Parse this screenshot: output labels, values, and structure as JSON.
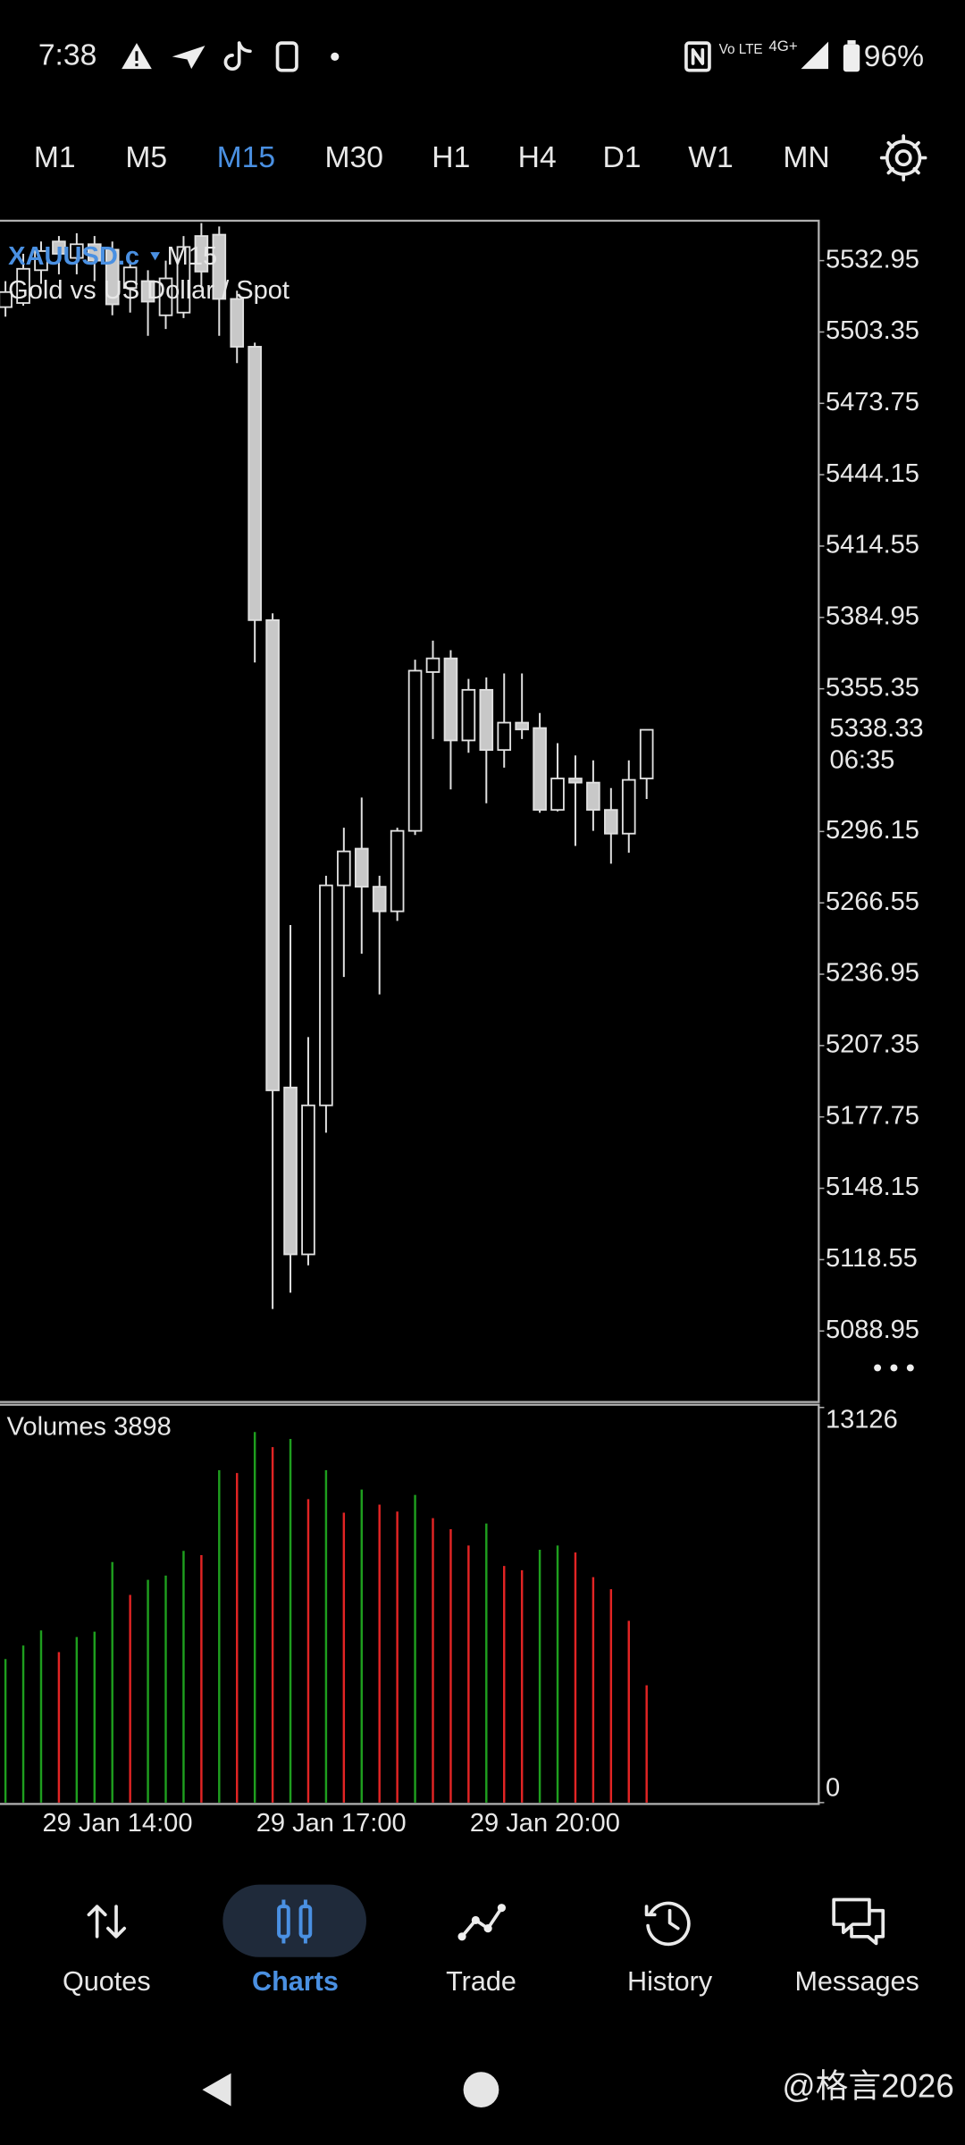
{
  "status_bar": {
    "time": "7:38",
    "volte": "Vo LTE",
    "network": "4G+",
    "battery": "96%"
  },
  "timeframes": {
    "items": [
      "M1",
      "M5",
      "M15",
      "M30",
      "H1",
      "H4",
      "D1",
      "W1",
      "MN"
    ],
    "active_index": 2
  },
  "chart_data": [
    {
      "type": "candlestick",
      "symbol": "XAUUSD.c",
      "timeframe": "M15",
      "subtitle": "Gold vs US Dollar / Spot",
      "categories": [
        null,
        null,
        "29 Jan 14:00",
        null,
        null,
        null,
        null,
        null,
        null,
        null,
        null,
        null,
        null,
        null,
        "29 Jan 17:00",
        null,
        null,
        null,
        null,
        null,
        null,
        null,
        null,
        null,
        null,
        null,
        "29 Jan 20:00",
        null,
        null,
        null,
        null,
        null,
        null,
        null,
        null,
        null,
        null
      ],
      "open": [
        5513.67,
        5515.37,
        5528.98,
        5540.89,
        5534.08,
        5539.75,
        5537.49,
        5521.61,
        5524.45,
        5510.27,
        5511.4,
        5543.16,
        5543.72,
        5517.07,
        5497.23,
        5383.83,
        5189.96,
        5120.74,
        5182.55,
        5273.8,
        5289.03,
        5273.24,
        5263.04,
        5296.41,
        5362.28,
        5367.95,
        5333.93,
        5354.91,
        5329.96,
        5341.3,
        5339.06,
        5305.11,
        5318.14,
        5316.43,
        5305.11,
        5295.27,
        5318.14
      ],
      "high": [
        5524.45,
        5535.79,
        5540.89,
        5543.16,
        5544.29,
        5543.16,
        5540.89,
        5532.95,
        5528.98,
        5532.95,
        5543.16,
        5548.5,
        5547.13,
        5520.48,
        5498.93,
        5386.66,
        5257.34,
        5210.89,
        5277.8,
        5297.71,
        5310.21,
        5277.8,
        5297.71,
        5367.39,
        5375.32,
        5371.35,
        5359.45,
        5360.02,
        5361.72,
        5361.72,
        5345.31,
        5332.79,
        5327.7,
        5325.65,
        5314.16,
        5325.65,
        5338.33
      ],
      "low": [
        5509.7,
        5514.24,
        5523.31,
        5527.28,
        5527.28,
        5524.45,
        5510.27,
        5511.4,
        5501.77,
        5504.6,
        5509.14,
        5521.61,
        5501.77,
        5490.43,
        5366.25,
        5098.08,
        5104.86,
        5116.2,
        5171.2,
        5235.79,
        5245.46,
        5228.59,
        5259.07,
        5294.71,
        5334.5,
        5313.6,
        5328.83,
        5307.88,
        5322.66,
        5334.5,
        5303.92,
        5304.5,
        5290.17,
        5296.41,
        5282.8,
        5287.33,
        5309.62
      ],
      "close": [
        5519.91,
        5529.55,
        5536.92,
        5535.79,
        5539.75,
        5532.95,
        5514.81,
        5530.12,
        5515.94,
        5525.58,
        5538.62,
        5528.41,
        5517.07,
        5497.23,
        5383.83,
        5188.78,
        5120.74,
        5182.55,
        5273.8,
        5287.9,
        5273.24,
        5263.04,
        5296.41,
        5362.85,
        5367.95,
        5333.93,
        5354.91,
        5329.96,
        5341.3,
        5338.47,
        5305.11,
        5318.14,
        5316.43,
        5305.11,
        5295.27,
        5317.56,
        5338.33
      ],
      "ylim": [
        5059.5,
        5549.5
      ],
      "yticks": [
        5532.95,
        5503.35,
        5473.75,
        5444.15,
        5414.55,
        5384.95,
        5355.35,
        5296.15,
        5266.55,
        5236.95,
        5207.35,
        5177.75,
        5148.15,
        5118.55,
        5088.95
      ],
      "current_price": 5338.33,
      "countdown": "06:35",
      "up_fill": "#000000",
      "down_fill": "#c8c8c8",
      "color": "#e0e0e0"
    },
    {
      "type": "volume",
      "title": "Volumes 3898",
      "values": [
        4770,
        5220,
        5720,
        5000,
        5500,
        5680,
        7990,
        6900,
        7400,
        7540,
        8360,
        8220,
        11040,
        10950,
        12310,
        11810,
        12080,
        10080,
        11040,
        9630,
        10400,
        9900,
        9670,
        10220,
        9450,
        9080,
        8540,
        9270,
        7860,
        7720,
        8400,
        8540,
        8310,
        7490,
        7090,
        6040,
        3898
      ],
      "ylim": [
        0,
        13126
      ],
      "yticks": [
        0,
        13126
      ],
      "up_color": "#1e9e1e",
      "down_color": "#e22424"
    }
  ],
  "bottom_nav": {
    "items": [
      "Quotes",
      "Charts",
      "Trade",
      "History",
      "Messages"
    ],
    "active_index": 1
  },
  "watermark": "@格言2026"
}
